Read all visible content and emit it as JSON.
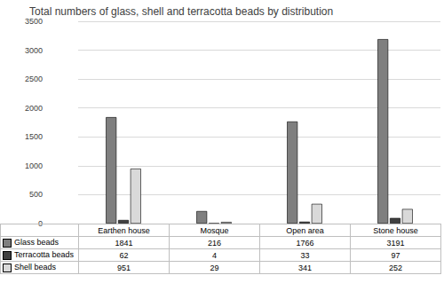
{
  "chart_data": {
    "type": "bar",
    "title": "Total numbers of glass, shell and terracotta beads by distribution",
    "categories": [
      "Earthen house",
      "Mosque",
      "Open area",
      "Stone house"
    ],
    "series": [
      {
        "name": "Glass beads",
        "color": "#7f7f7f",
        "values": [
          1841,
          216,
          1766,
          3191
        ]
      },
      {
        "name": "Terracotta beads",
        "color": "#404040",
        "values": [
          62,
          4,
          33,
          97
        ]
      },
      {
        "name": "Shell beads",
        "color": "#d9d9d9",
        "values": [
          951,
          29,
          341,
          252
        ]
      }
    ],
    "ylim": [
      0,
      3500
    ],
    "yticks": [
      0,
      500,
      1000,
      1500,
      2000,
      2500,
      3000,
      3500
    ],
    "grid": true
  }
}
